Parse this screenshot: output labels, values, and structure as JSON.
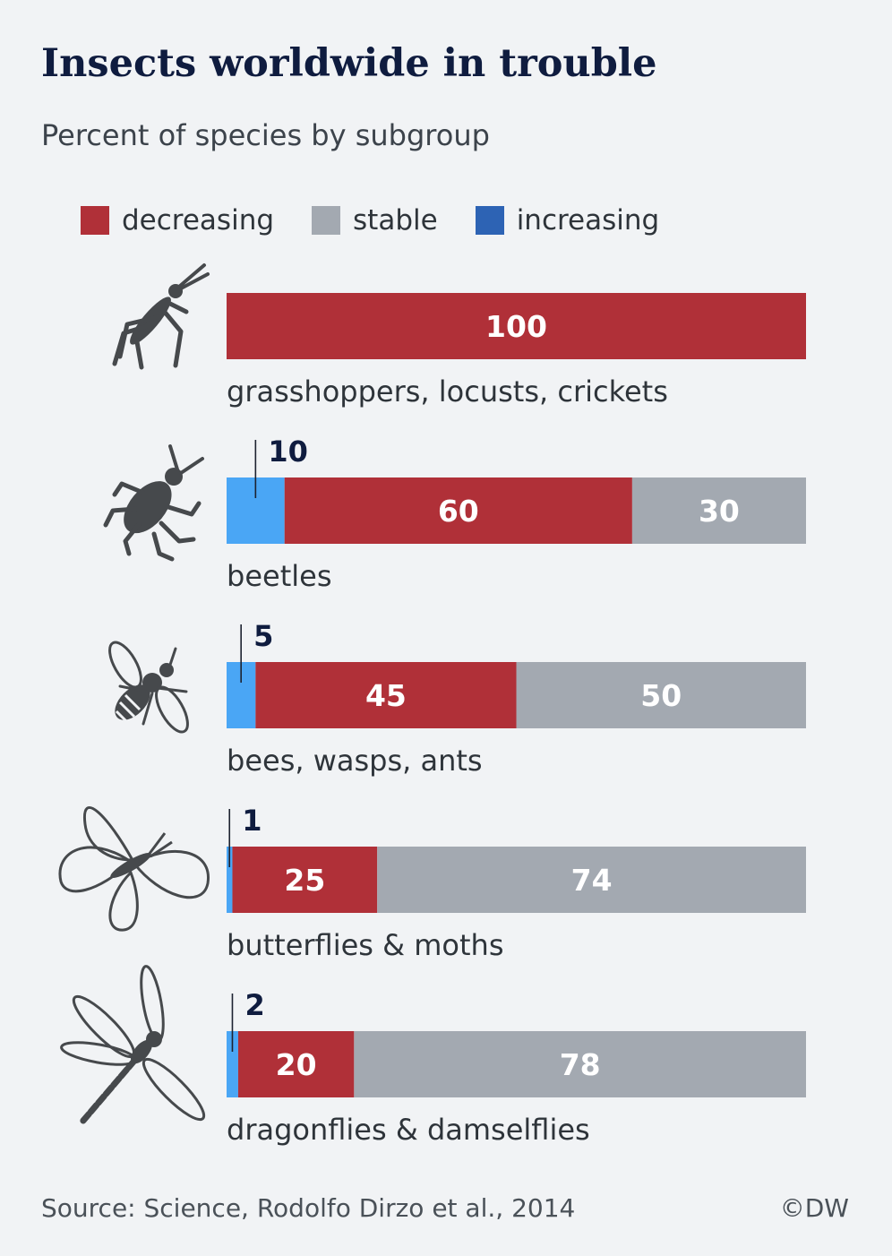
{
  "chart_data": {
    "type": "bar",
    "orientation": "horizontal",
    "stacked": true,
    "title": "Insects worldwide in trouble",
    "subtitle": "Percent of species by subgroup",
    "legend": [
      {
        "key": "increasing",
        "label": "increasing",
        "color": "#2d63b4"
      },
      {
        "key": "decreasing",
        "label": "decreasing",
        "color": "#b03038"
      },
      {
        "key": "stable",
        "label": "stable",
        "color": "#a3a9b1"
      }
    ],
    "legend_order": [
      "decreasing",
      "stable",
      "increasing"
    ],
    "bar_increasing_color": "#4aa6f5",
    "categories": [
      "grasshoppers, locusts, crickets",
      "beetles",
      "bees, wasps, ants",
      "butterflies & moths",
      "dragonflies & damselflies"
    ],
    "icons": [
      "grasshopper-icon",
      "beetle-icon",
      "bee-icon",
      "butterfly-icon",
      "dragonfly-icon"
    ],
    "series": [
      {
        "name": "increasing",
        "values": [
          0,
          10,
          5,
          1,
          2
        ]
      },
      {
        "name": "decreasing",
        "values": [
          100,
          60,
          45,
          25,
          20
        ]
      },
      {
        "name": "stable",
        "values": [
          0,
          30,
          50,
          74,
          78
        ]
      }
    ],
    "xlim": [
      0,
      100
    ],
    "source": "Source: Science, Rodolfo Dirzo et al., 2014",
    "credit": "©DW"
  }
}
